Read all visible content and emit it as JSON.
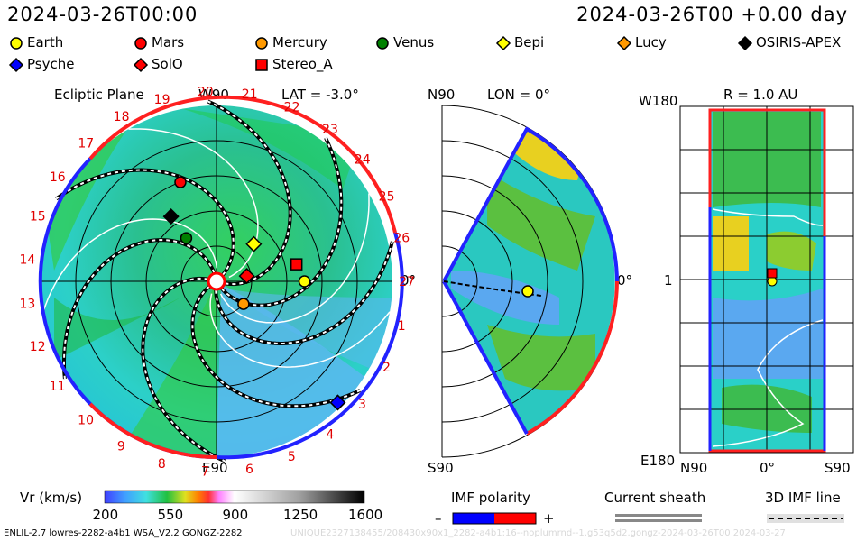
{
  "header": {
    "datetime_left": "2024-03-26T00:00",
    "datetime_right": "2024-03-26T00 +0.00 day"
  },
  "legend": [
    {
      "name": "Earth",
      "shape": "circle",
      "color": "#ffff00"
    },
    {
      "name": "Mars",
      "shape": "circle",
      "color": "#ff0000"
    },
    {
      "name": "Mercury",
      "shape": "circle",
      "color": "#ff9900"
    },
    {
      "name": "Venus",
      "shape": "circle",
      "color": "#008000"
    },
    {
      "name": "Bepi",
      "shape": "diamond",
      "color": "#ffff00"
    },
    {
      "name": "Lucy",
      "shape": "diamond",
      "color": "#ff9900"
    },
    {
      "name": "OSIRIS-APEX",
      "shape": "diamond",
      "color": "#000000"
    },
    {
      "name": "Psyche",
      "shape": "diamond",
      "color": "#0000ff"
    },
    {
      "name": "SolO",
      "shape": "diamond",
      "color": "#ff0000"
    },
    {
      "name": "Stereo_A",
      "shape": "square",
      "color": "#ff0000"
    }
  ],
  "panels": {
    "ecliptic": {
      "title": "Ecliptic Plane",
      "top": "W90",
      "lat_label": "LAT = -3.0°",
      "right": "0°",
      "bottom": "E90"
    },
    "meridional": {
      "top": "N90",
      "lon_label": "LON = 0°",
      "right": "0°",
      "bottom": "S90"
    },
    "radial": {
      "left_top": "W180",
      "r_label": "R = 1.0 AU",
      "left_mid": "1",
      "left_bottom": "E180",
      "x_left": "N90",
      "x_mid": "0°",
      "x_right": "S90"
    }
  },
  "carrington_ticks": [
    "1",
    "2",
    "3",
    "4",
    "5",
    "6",
    "7",
    "8",
    "9",
    "10",
    "11",
    "12",
    "13",
    "14",
    "15",
    "16",
    "17",
    "18",
    "19",
    "20",
    "21",
    "22",
    "23",
    "24",
    "25",
    "26",
    "27"
  ],
  "colorbar": {
    "label": "Vr (km/s)",
    "ticks": [
      "200",
      "550",
      "900",
      "1250",
      "1600"
    ],
    "range": [
      200,
      1600
    ]
  },
  "imf": {
    "label": "IMF polarity",
    "minus": "–",
    "plus": "+",
    "neg_color": "#0000ff",
    "pos_color": "#ff0000"
  },
  "sheath": {
    "label": "Current sheath"
  },
  "imfline": {
    "label": "3D IMF line"
  },
  "footer": {
    "left": "ENLIL-2.7 lowres-2282-a4b1 WSA_V2.2 GONGZ-2282",
    "right": "UNIQUE2327138455/208430x90x1_2282-a4b1:16--noplumrnd--1.g53q5d2.gongz-2024-03-26T00   2024-03-27"
  },
  "chart_data": {
    "type": "heatmap",
    "title": "",
    "description_values": {
      "earth_lon_deg": 0,
      "earth_r_au": 1.0,
      "lat_deg": -3.0
    },
    "series": [
      {
        "name": "Earth",
        "r": 1.0,
        "lon": 0
      },
      {
        "name": "Mars",
        "r": 1.2,
        "lon": 110
      },
      {
        "name": "Mercury",
        "r": 0.4,
        "lon": -40
      },
      {
        "name": "Venus",
        "r": 0.6,
        "lon": 125
      },
      {
        "name": "Bepi",
        "r": 0.6,
        "lon": 45
      },
      {
        "name": "OSIRIS-APEX",
        "r": 0.9,
        "lon": 125
      },
      {
        "name": "Psyche",
        "r": 1.95,
        "lon": -45
      },
      {
        "name": "SolO",
        "r": 0.35,
        "lon": 10
      },
      {
        "name": "Stereo_A",
        "r": 0.93,
        "lon": 12
      }
    ]
  }
}
